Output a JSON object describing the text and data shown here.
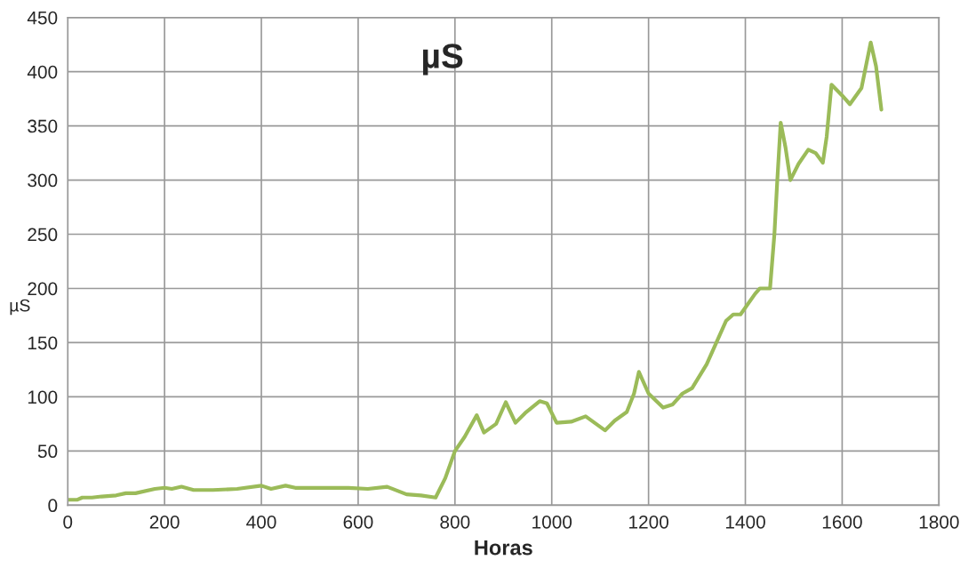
{
  "chart_data": {
    "type": "line",
    "title": "µS",
    "xlabel": "Horas",
    "ylabel": "µS",
    "x": [
      0,
      20,
      30,
      50,
      70,
      100,
      120,
      140,
      180,
      200,
      215,
      235,
      260,
      300,
      350,
      400,
      420,
      450,
      470,
      520,
      580,
      620,
      660,
      700,
      730,
      760,
      780,
      800,
      820,
      845,
      860,
      885,
      905,
      925,
      945,
      975,
      990,
      1010,
      1040,
      1070,
      1110,
      1130,
      1155,
      1170,
      1180,
      1200,
      1230,
      1250,
      1270,
      1290,
      1320,
      1360,
      1375,
      1390,
      1420,
      1430,
      1451,
      1460,
      1466,
      1473,
      1483,
      1493,
      1510,
      1530,
      1545,
      1560,
      1568,
      1578,
      1600,
      1616,
      1640,
      1659,
      1670,
      1681
    ],
    "series": [
      {
        "color": "#9bbb59",
        "values": [
          5,
          5,
          7,
          7,
          8,
          9,
          11,
          11,
          15,
          16,
          15,
          17,
          14,
          14,
          15,
          18,
          15,
          18,
          16,
          16,
          16,
          15,
          17,
          10,
          9,
          7,
          25,
          50,
          63,
          83,
          67,
          75,
          95,
          76,
          85,
          96,
          94,
          76,
          77,
          82,
          69,
          78,
          86,
          103,
          123,
          103,
          90,
          93,
          103,
          108,
          130,
          170,
          176,
          176,
          195,
          200,
          200,
          250,
          300,
          353,
          330,
          300,
          315,
          328,
          325,
          316,
          340,
          388,
          378,
          370,
          385,
          427,
          405,
          365
        ]
      }
    ],
    "xlim": [
      0,
      1800
    ],
    "xticks": [
      0,
      200,
      400,
      600,
      800,
      1000,
      1200,
      1400,
      1600,
      1800
    ],
    "ylim": [
      0,
      450
    ],
    "yticks": [
      0,
      50,
      100,
      150,
      200,
      250,
      300,
      350,
      400,
      450
    ],
    "grid": true,
    "marker": "none",
    "line_style": "solid"
  }
}
